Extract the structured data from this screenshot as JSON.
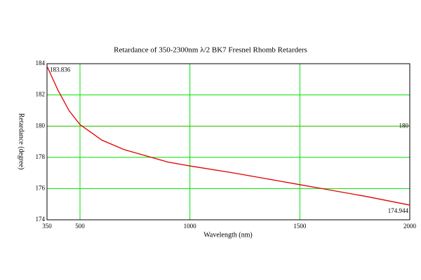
{
  "chart_data": {
    "type": "line",
    "title": "Retardance of 350-2300nm λ/2 BK7 Fresnel Rhomb Retarders",
    "x_label": "Wavelength (nm)",
    "y_label": "Retardance (degree)",
    "x": [
      350,
      400,
      450,
      500,
      600,
      700,
      800,
      900,
      1000,
      1200,
      1400,
      1500,
      1600,
      1800,
      2000
    ],
    "series": [
      {
        "name": "Retardance",
        "color": "#e00000",
        "values": [
          183.836,
          182.3,
          181.0,
          180.1,
          179.1,
          178.5,
          178.1,
          177.7,
          177.45,
          177.0,
          176.5,
          176.25,
          176.0,
          175.5,
          174.944
        ]
      }
    ],
    "end_labels": true,
    "xlim": [
      350,
      2000
    ],
    "xticks": [
      350,
      500,
      1000,
      1500,
      2000
    ],
    "ylim": [
      174,
      184
    ],
    "yticks": [
      174,
      176,
      178,
      180,
      182,
      184
    ],
    "grid": true,
    "grid_color": "#00e000",
    "hline": 180,
    "hline_color": "#8a8a00"
  }
}
